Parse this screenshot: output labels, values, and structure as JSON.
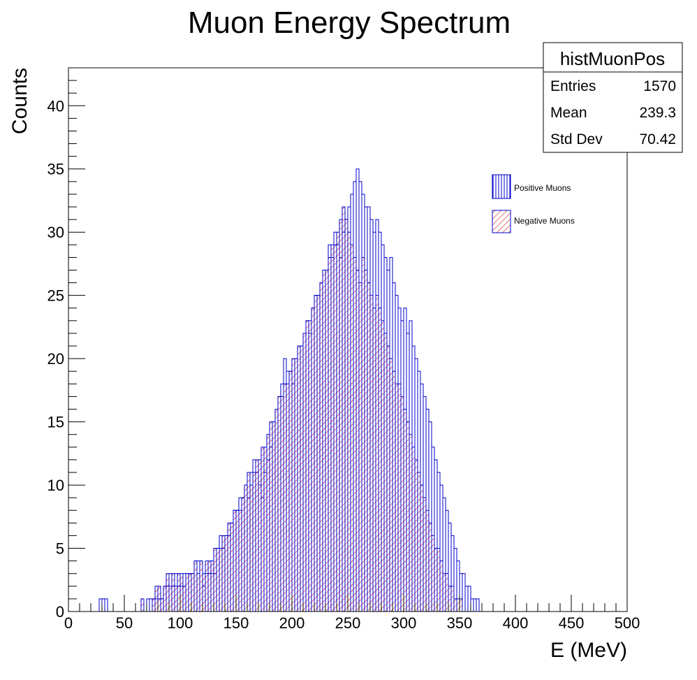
{
  "chart_data": {
    "type": "bar",
    "title": "Muon Energy Spectrum",
    "xlabel": "E (MeV)",
    "ylabel": "Counts",
    "xlim": [
      0,
      500
    ],
    "ylim": [
      0,
      43
    ],
    "bin_width": 2.5,
    "x_ticks": [
      0,
      50,
      100,
      150,
      200,
      250,
      300,
      350,
      400,
      450,
      500
    ],
    "y_ticks": [
      0,
      5,
      10,
      15,
      20,
      25,
      30,
      35,
      40
    ],
    "legend_position": "upper-right",
    "series": [
      {
        "name": "Positive Muons",
        "color": "#0000cc",
        "fill_style": "vertical-hatch",
        "values": [
          0,
          0,
          0,
          0,
          0,
          0,
          0,
          0,
          0,
          0,
          0,
          1,
          1,
          1,
          0,
          0,
          0,
          0,
          0,
          0,
          0,
          0,
          0,
          0,
          0,
          0,
          0,
          0,
          1,
          1,
          1,
          1,
          1,
          1,
          2,
          2,
          3,
          2,
          3,
          2,
          2,
          3,
          3,
          3,
          3,
          4,
          4,
          4,
          2,
          3,
          3,
          3,
          3,
          5,
          6,
          5,
          6,
          6,
          7,
          8,
          8,
          9,
          9,
          10,
          9,
          11,
          12,
          11,
          10,
          9,
          11,
          12,
          13,
          15,
          16,
          17,
          18,
          20,
          19,
          19,
          18,
          20,
          21,
          21,
          22,
          23,
          22,
          24,
          25,
          25,
          26,
          27,
          27,
          29,
          28,
          30,
          29,
          28,
          30,
          31,
          32,
          33,
          34,
          35,
          34,
          33,
          32,
          32,
          31,
          30,
          31,
          30,
          29,
          28,
          27,
          28,
          26,
          25,
          24,
          23,
          24,
          22,
          23,
          21,
          20,
          19,
          18,
          17,
          16,
          15,
          13,
          12,
          11,
          10,
          9,
          8,
          7,
          6,
          5,
          4,
          3,
          3,
          2,
          2,
          1,
          1,
          1,
          0,
          0,
          0,
          0,
          0,
          0,
          0,
          0,
          0,
          0,
          0,
          0,
          0,
          0,
          0,
          0,
          0,
          0,
          0,
          0,
          0,
          0,
          0,
          0,
          0,
          0,
          0,
          0,
          0,
          0,
          0,
          0,
          0,
          0,
          0,
          0,
          0,
          0,
          0,
          0,
          0,
          0,
          0,
          0,
          0,
          0,
          0,
          0,
          0,
          0,
          0,
          0,
          0
        ]
      },
      {
        "name": "Negative Muons",
        "color": "#cc0000",
        "fill_style": "diagonal-hatch",
        "values": [
          0,
          0,
          0,
          0,
          0,
          0,
          0,
          0,
          0,
          0,
          0,
          0,
          0,
          0,
          0,
          0,
          0,
          0,
          0,
          0,
          0,
          0,
          0,
          0,
          0,
          0,
          1,
          0,
          0,
          0,
          1,
          2,
          2,
          1,
          2,
          3,
          2,
          3,
          2,
          3,
          3,
          2,
          3,
          3,
          3,
          4,
          3,
          4,
          3,
          4,
          4,
          4,
          5,
          5,
          5,
          6,
          6,
          7,
          7,
          8,
          8,
          8,
          9,
          10,
          11,
          10,
          11,
          12,
          12,
          13,
          13,
          14,
          15,
          15,
          16,
          17,
          17,
          18,
          18,
          19,
          20,
          20,
          21,
          21,
          22,
          23,
          23,
          24,
          25,
          25,
          26,
          27,
          27,
          28,
          29,
          29,
          30,
          31,
          32,
          31,
          30,
          29,
          28,
          27,
          26,
          28,
          27,
          26,
          25,
          24,
          25,
          24,
          23,
          22,
          21,
          20,
          19,
          18,
          18,
          17,
          16,
          15,
          14,
          13,
          12,
          11,
          10,
          9,
          8,
          7,
          6,
          5,
          5,
          4,
          3,
          3,
          2,
          2,
          1,
          1,
          1,
          0,
          0,
          0,
          0,
          0,
          0,
          0,
          0,
          0,
          0,
          0,
          0,
          0,
          0,
          0,
          0,
          0,
          0,
          0,
          0,
          0,
          0,
          0,
          0,
          0,
          0,
          0,
          0,
          0,
          0,
          0,
          0,
          0,
          0,
          0,
          0,
          0,
          0,
          0,
          0,
          0,
          0,
          0,
          0,
          0,
          0,
          0,
          0,
          0,
          0,
          0,
          0,
          0,
          0,
          0,
          0,
          0,
          0,
          0,
          0,
          0,
          0,
          0,
          0,
          0
        ]
      }
    ],
    "stats_box": {
      "name": "histMuonPos",
      "rows": [
        {
          "label": "Entries",
          "value": "1570"
        },
        {
          "label": "Mean",
          "value": "239.3"
        },
        {
          "label": "Std Dev",
          "value": "70.42"
        }
      ]
    }
  }
}
